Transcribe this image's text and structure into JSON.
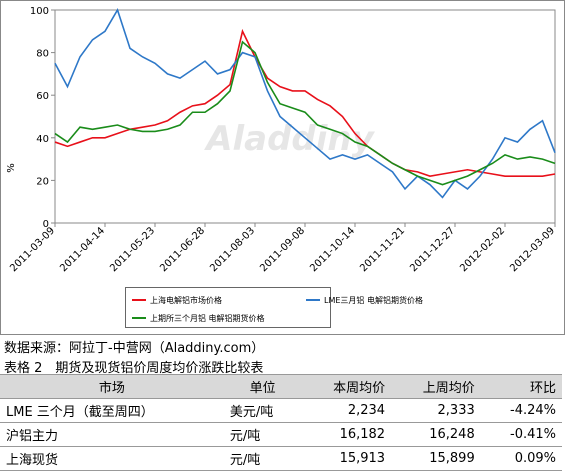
{
  "chart_data": {
    "type": "line",
    "y_label": "%",
    "watermark": "Aladdiny",
    "categories": [
      "2011-03-09",
      null,
      null,
      null,
      "2011-04-14",
      null,
      null,
      null,
      "2011-05-23",
      null,
      null,
      null,
      "2011-06-28",
      null,
      null,
      null,
      "2011-08-03",
      null,
      null,
      null,
      "2011-09-08",
      null,
      null,
      null,
      "2011-10-14",
      null,
      null,
      null,
      "2011-11-21",
      null,
      null,
      null,
      "2011-12-27",
      null,
      null,
      null,
      "2012-02-02",
      null,
      null,
      null,
      "2012-03-09"
    ],
    "series": [
      {
        "name": "上海电解铝市场价格",
        "color": "#e8101a",
        "values": [
          38,
          36,
          38,
          40,
          40,
          42,
          44,
          45,
          46,
          48,
          52,
          55,
          56,
          60,
          65,
          90,
          78,
          68,
          64,
          62,
          62,
          58,
          55,
          50,
          42,
          36,
          32,
          28,
          25,
          24,
          22,
          23,
          24,
          25,
          24,
          23,
          22,
          22,
          22,
          22,
          23
        ]
      },
      {
        "name": "LME三月铝 电解铝期货价格",
        "color": "#2e78c8",
        "values": [
          75,
          64,
          78,
          86,
          90,
          100,
          82,
          78,
          75,
          70,
          68,
          72,
          76,
          70,
          72,
          80,
          78,
          62,
          50,
          45,
          40,
          35,
          30,
          32,
          30,
          32,
          28,
          24,
          16,
          22,
          18,
          12,
          20,
          16,
          22,
          30,
          40,
          38,
          44,
          48,
          33
        ]
      },
      {
        "name": "上期所三个月铝 电解铝期货价格",
        "color": "#1a8c1a",
        "values": [
          42,
          38,
          45,
          44,
          45,
          46,
          44,
          43,
          43,
          44,
          46,
          52,
          52,
          56,
          62,
          85,
          80,
          66,
          56,
          54,
          52,
          46,
          44,
          42,
          38,
          36,
          32,
          28,
          25,
          22,
          20,
          18,
          20,
          22,
          25,
          28,
          32,
          30,
          31,
          30,
          28
        ]
      }
    ],
    "ylim": [
      0,
      100
    ],
    "yticks": [
      0,
      20,
      40,
      60,
      80,
      100
    ],
    "grid": false
  },
  "source": "数据来源：阿拉丁-中营网（Aladdiny.com）",
  "caption": "表格 2　期货及现货铝价周度均价涨跌比较表",
  "table": {
    "header": [
      "市场",
      "单位",
      "本周均价",
      "上周均价",
      "环比"
    ],
    "rows": [
      [
        "LME 三个月（截至周四）",
        "美元/吨",
        "2,234",
        "2,333",
        "-4.24%"
      ],
      [
        "沪铝主力",
        "元/吨",
        "16,182",
        "16,248",
        "-0.41%"
      ],
      [
        "上海现货",
        "元/吨",
        "15,913",
        "15,899",
        "0.09%"
      ]
    ]
  }
}
